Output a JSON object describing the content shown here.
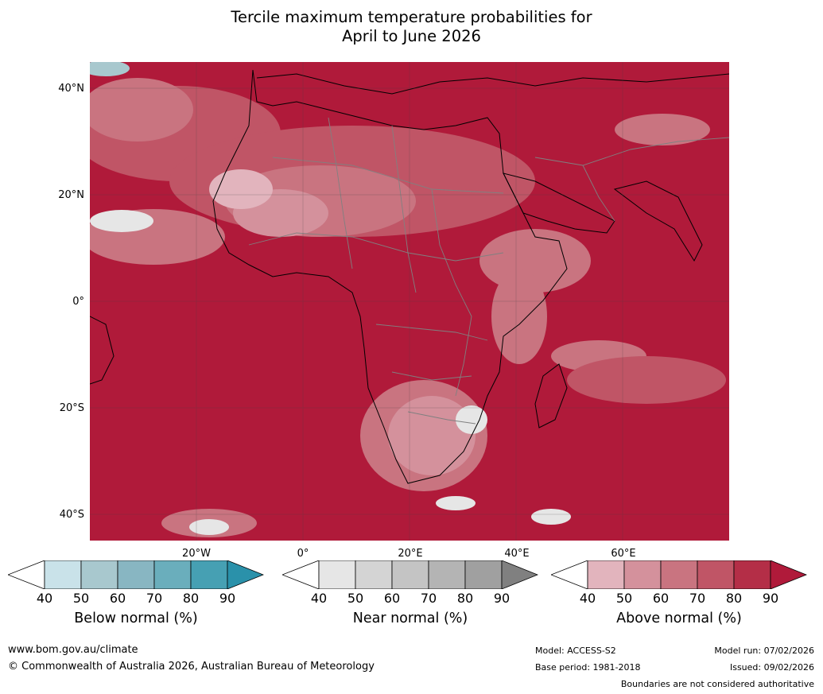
{
  "title": {
    "line1": "Tercile maximum temperature probabilities for",
    "line2": "April to June 2026"
  },
  "map": {
    "latitude_labels": [
      "40°N",
      "20°N",
      "0°",
      "20°S",
      "40°S"
    ],
    "longitude_labels": [
      "20°W",
      "0°",
      "20°E",
      "40°E",
      "60°E"
    ],
    "dominant_category": "Above normal",
    "dominant_probability_range_percent": [
      80,
      90
    ]
  },
  "legend": {
    "tick_labels": [
      "40",
      "50",
      "60",
      "70",
      "80",
      "90"
    ],
    "scales": [
      {
        "caption": "Below normal (%)",
        "colors": [
          "#ffffff",
          "#c9e2e9",
          "#a8c8ce",
          "#88b6c2",
          "#6aaebc",
          "#46a0b3",
          "#2a91aa"
        ]
      },
      {
        "caption": "Near normal (%)",
        "colors": [
          "#ffffff",
          "#e6e6e6",
          "#d4d4d4",
          "#c4c4c4",
          "#b4b4b4",
          "#a0a0a0",
          "#808080"
        ]
      },
      {
        "caption": "Above normal (%)",
        "colors": [
          "#ffffff",
          "#e2b4bd",
          "#d4919c",
          "#c97480",
          "#c05566",
          "#b42e47",
          "#b01a3a"
        ]
      }
    ]
  },
  "footer": {
    "website": "www.bom.gov.au/climate",
    "copyright": "© Commonwealth of Australia 2026, Australian Bureau of Meteorology",
    "model": "Model: ACCESS-S2",
    "base_period": "Base period: 1981-2018",
    "model_run": "Model run: 07/02/2026",
    "issued": "Issued: 09/02/2026",
    "disclaimer": "Boundaries are not considered authoritative"
  }
}
